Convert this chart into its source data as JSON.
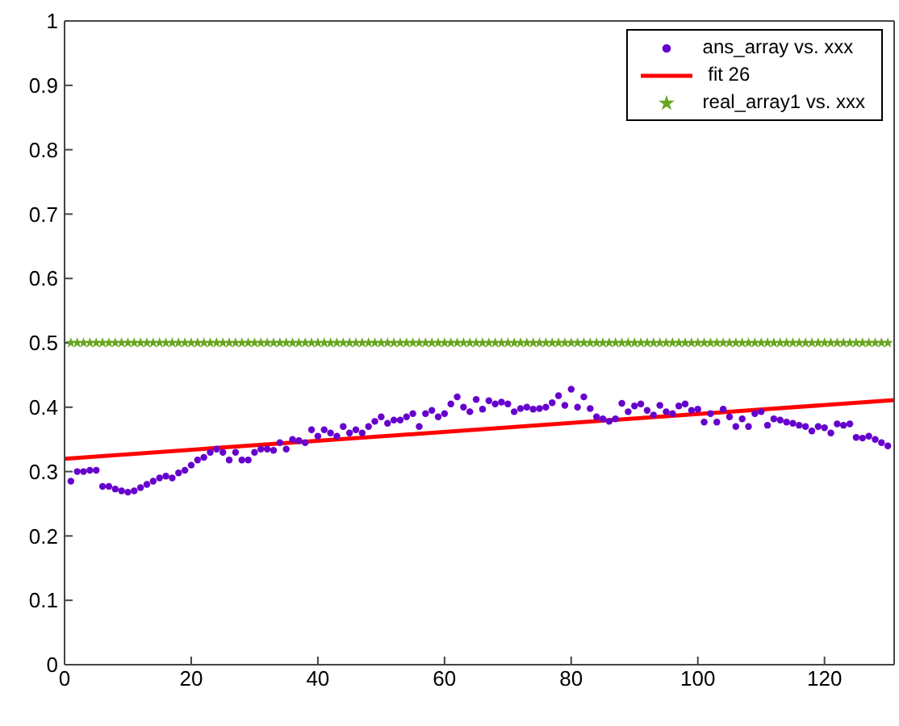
{
  "chart_data": {
    "type": "scatter",
    "x": [
      1,
      2,
      3,
      4,
      5,
      6,
      7,
      8,
      9,
      10,
      11,
      12,
      13,
      14,
      15,
      16,
      17,
      18,
      19,
      20,
      21,
      22,
      23,
      24,
      25,
      26,
      27,
      28,
      29,
      30,
      31,
      32,
      33,
      34,
      35,
      36,
      37,
      38,
      39,
      40,
      41,
      42,
      43,
      44,
      45,
      46,
      47,
      48,
      49,
      50,
      51,
      52,
      53,
      54,
      55,
      56,
      57,
      58,
      59,
      60,
      61,
      62,
      63,
      64,
      65,
      66,
      67,
      68,
      69,
      70,
      71,
      72,
      73,
      74,
      75,
      76,
      77,
      78,
      79,
      80,
      81,
      82,
      83,
      84,
      85,
      86,
      87,
      88,
      89,
      90,
      91,
      92,
      93,
      94,
      95,
      96,
      97,
      98,
      99,
      100,
      101,
      102,
      103,
      104,
      105,
      106,
      107,
      108,
      109,
      110,
      111,
      112,
      113,
      114,
      115,
      116,
      117,
      118,
      119,
      120,
      121,
      122,
      123,
      124,
      125,
      126,
      127,
      128,
      129,
      130
    ],
    "series": [
      {
        "name": "ans_array vs. xxx",
        "marker": "circle",
        "color": "#6600cc",
        "values": [
          0.285,
          0.3,
          0.3,
          0.302,
          0.302,
          0.277,
          0.277,
          0.273,
          0.27,
          0.268,
          0.27,
          0.275,
          0.28,
          0.285,
          0.29,
          0.293,
          0.29,
          0.298,
          0.302,
          0.31,
          0.318,
          0.322,
          0.33,
          0.335,
          0.33,
          0.318,
          0.33,
          0.318,
          0.318,
          0.33,
          0.335,
          0.335,
          0.333,
          0.345,
          0.335,
          0.35,
          0.348,
          0.345,
          0.365,
          0.355,
          0.365,
          0.36,
          0.355,
          0.37,
          0.36,
          0.365,
          0.36,
          0.37,
          0.378,
          0.385,
          0.375,
          0.38,
          0.38,
          0.385,
          0.39,
          0.37,
          0.39,
          0.395,
          0.385,
          0.39,
          0.405,
          0.416,
          0.4,
          0.393,
          0.412,
          0.397,
          0.41,
          0.405,
          0.408,
          0.405,
          0.393,
          0.398,
          0.4,
          0.397,
          0.398,
          0.4,
          0.407,
          0.418,
          0.403,
          0.428,
          0.4,
          0.416,
          0.398,
          0.385,
          0.382,
          0.378,
          0.382,
          0.406,
          0.393,
          0.402,
          0.405,
          0.395,
          0.388,
          0.403,
          0.393,
          0.39,
          0.402,
          0.405,
          0.395,
          0.397,
          0.377,
          0.39,
          0.377,
          0.397,
          0.385,
          0.37,
          0.382,
          0.37,
          0.39,
          0.393,
          0.372,
          0.382,
          0.38,
          0.377,
          0.375,
          0.372,
          0.37,
          0.363,
          0.37,
          0.368,
          0.36,
          0.374,
          0.372,
          0.374,
          0.353,
          0.352,
          0.355,
          0.35,
          0.345,
          0.34
        ]
      },
      {
        "name": " fit 26",
        "type": "line",
        "marker": "none",
        "color": "#ff0000",
        "x": [
          0,
          131
        ],
        "values": [
          0.32,
          0.411
        ]
      },
      {
        "name": "real_array1 vs. xxx",
        "marker": "star",
        "color": "#66a61e",
        "values": [
          0.5,
          0.5,
          0.5,
          0.5,
          0.5,
          0.5,
          0.5,
          0.5,
          0.5,
          0.5,
          0.5,
          0.5,
          0.5,
          0.5,
          0.5,
          0.5,
          0.5,
          0.5,
          0.5,
          0.5,
          0.5,
          0.5,
          0.5,
          0.5,
          0.5,
          0.5,
          0.5,
          0.5,
          0.5,
          0.5,
          0.5,
          0.5,
          0.5,
          0.5,
          0.5,
          0.5,
          0.5,
          0.5,
          0.5,
          0.5,
          0.5,
          0.5,
          0.5,
          0.5,
          0.5,
          0.5,
          0.5,
          0.5,
          0.5,
          0.5,
          0.5,
          0.5,
          0.5,
          0.5,
          0.5,
          0.5,
          0.5,
          0.5,
          0.5,
          0.5,
          0.5,
          0.5,
          0.5,
          0.5,
          0.5,
          0.5,
          0.5,
          0.5,
          0.5,
          0.5,
          0.5,
          0.5,
          0.5,
          0.5,
          0.5,
          0.5,
          0.5,
          0.5,
          0.5,
          0.5,
          0.5,
          0.5,
          0.5,
          0.5,
          0.5,
          0.5,
          0.5,
          0.5,
          0.5,
          0.5,
          0.5,
          0.5,
          0.5,
          0.5,
          0.5,
          0.5,
          0.5,
          0.5,
          0.5,
          0.5,
          0.5,
          0.5,
          0.5,
          0.5,
          0.5,
          0.5,
          0.5,
          0.5,
          0.5,
          0.5,
          0.5,
          0.5,
          0.5,
          0.5,
          0.5,
          0.5,
          0.5,
          0.5,
          0.5,
          0.5,
          0.5,
          0.5,
          0.5,
          0.5,
          0.5,
          0.5,
          0.5,
          0.5,
          0.5,
          0.5
        ]
      }
    ],
    "xlim": [
      0,
      131
    ],
    "xticks": [
      0,
      20,
      40,
      60,
      80,
      100,
      120
    ],
    "ylim": [
      0,
      1
    ],
    "yticks": [
      0,
      0.1,
      0.2,
      0.3,
      0.4,
      0.5,
      0.6,
      0.7,
      0.8,
      0.9,
      1
    ],
    "grid": false,
    "legend": "top right"
  }
}
